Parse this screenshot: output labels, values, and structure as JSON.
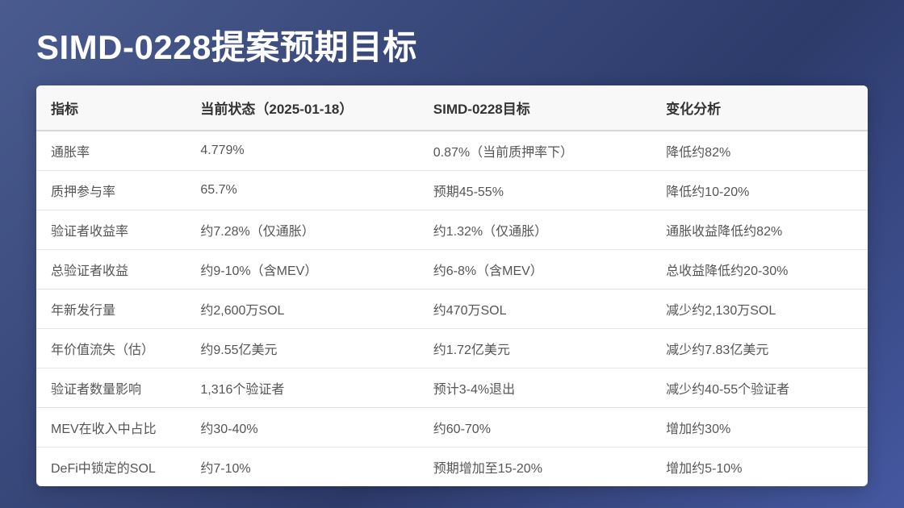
{
  "title": "SIMD-0228提案预期目标",
  "table": {
    "columns": [
      {
        "label": "指标",
        "width": "18%"
      },
      {
        "label": "当前状态（2025-01-18）",
        "width": "28%"
      },
      {
        "label": "SIMD-0228目标",
        "width": "28%"
      },
      {
        "label": "变化分析",
        "width": "26%"
      }
    ],
    "rows": [
      [
        "通胀率",
        "4.779%",
        "0.87%（当前质押率下）",
        "降低约82%"
      ],
      [
        "质押参与率",
        "65.7%",
        "预期45-55%",
        "降低约10-20%"
      ],
      [
        "验证者收益率",
        "约7.28%（仅通胀）",
        "约1.32%（仅通胀）",
        "通胀收益降低约82%"
      ],
      [
        "总验证者收益",
        "约9-10%（含MEV）",
        "约6-8%（含MEV）",
        "总收益降低约20-30%"
      ],
      [
        "年新发行量",
        "约2,600万SOL",
        "约470万SOL",
        "减少约2,130万SOL"
      ],
      [
        "年价值流失（估）",
        "约9.55亿美元",
        "约1.72亿美元",
        "减少约7.83亿美元"
      ],
      [
        "验证者数量影响",
        "1,316个验证者",
        "预计3-4%退出",
        "减少约40-55个验证者"
      ],
      [
        "MEV在收入中占比",
        "约30-40%",
        "约60-70%",
        "增加约30%"
      ],
      [
        "DeFi中锁定的SOL",
        "约7-10%",
        "预期增加至15-20%",
        "增加约5-10%"
      ]
    ]
  },
  "styling": {
    "background_gradient": [
      "#4a5b8f",
      "#3a4a7c",
      "#2d3b6b",
      "#4558a0"
    ],
    "title_color": "#ffffff",
    "title_fontsize": 42,
    "table_bg": "#ffffff",
    "header_bg": "#f8f8f8",
    "header_color": "#333333",
    "header_fontsize": 17,
    "cell_color": "#555555",
    "cell_fontsize": 16,
    "border_color": "#e5e5e5",
    "header_border_color": "#d8d8d8"
  }
}
